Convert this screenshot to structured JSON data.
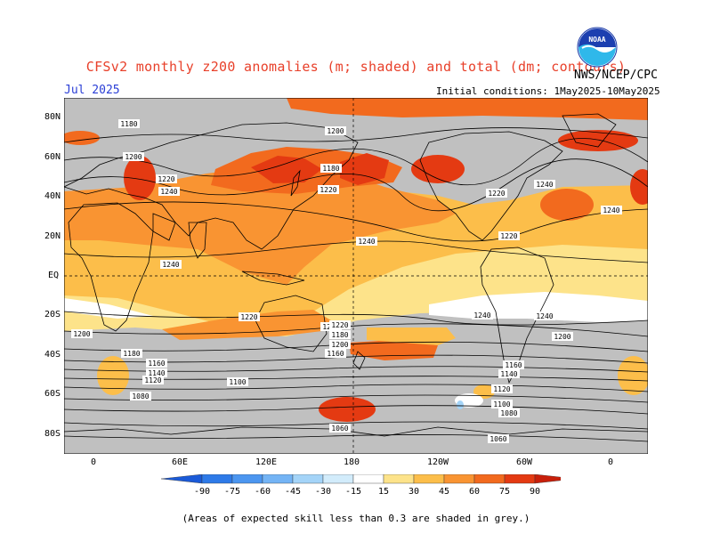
{
  "header": {
    "title": "CFSv2 monthly z200 anomalies (m; shaded) and total (dm; contours)",
    "month": "Jul 2025",
    "agency": "NWS/NCEP/CPC",
    "initial_conditions": "Initial conditions: 1May2025-10May2025",
    "logo_text": "NOAA"
  },
  "map": {
    "projection": "cylindrical equidistant",
    "lat_labels": [
      "80N",
      "60N",
      "40N",
      "20N",
      "EQ",
      "20S",
      "40S",
      "60S",
      "80S"
    ],
    "lon_labels": [
      "0",
      "60E",
      "120E",
      "180",
      "120W",
      "60W",
      "0"
    ],
    "contour_unit": "dm",
    "contour_labels": [
      "1180",
      "1200",
      "1220",
      "1240",
      "1180",
      "1200",
      "1220",
      "1240",
      "1220",
      "1240",
      "1240",
      "1220",
      "1240",
      "1220",
      "1200",
      "1240",
      "1200",
      "1180",
      "1160",
      "1140",
      "1120",
      "1100",
      "1080",
      "1060",
      "1160",
      "1180",
      "1200",
      "1220",
      "1240",
      "1200",
      "1160",
      "1140",
      "1120",
      "1100",
      "1080",
      "1060"
    ],
    "mask_note": "(Areas of expected skill less than 0.3 are shaded in grey.)",
    "grey_color": "#c0c0c0"
  },
  "colorbar": {
    "ticks": [
      "-90",
      "-75",
      "-60",
      "-45",
      "-30",
      "-15",
      "15",
      "30",
      "45",
      "60",
      "75",
      "90"
    ],
    "colors": [
      "#1a5ad8",
      "#2e7ae8",
      "#4c96f0",
      "#74b4f5",
      "#a4d4f8",
      "#d2ecfb",
      "#ffffff",
      "#fde38a",
      "#fcbe4a",
      "#f99432",
      "#f26a1e",
      "#e43a12",
      "#c81f0a"
    ]
  }
}
